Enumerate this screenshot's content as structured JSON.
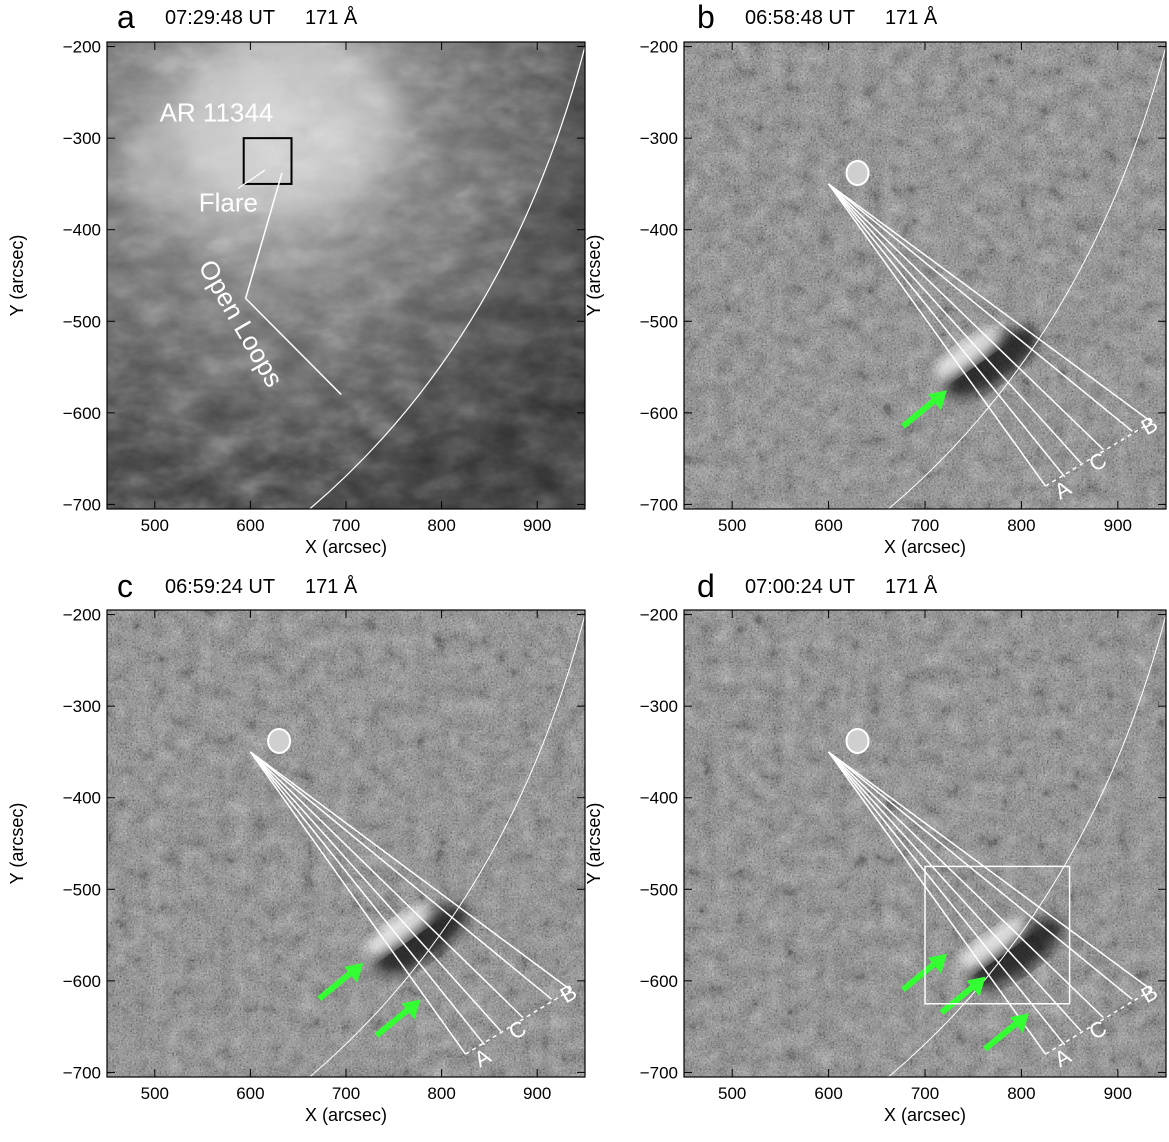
{
  "panels": [
    {
      "letter": "a",
      "time": "07:29:48 UT",
      "channel": "171 Å",
      "kind": "intensity",
      "annotations": {
        "region": "AR 11344",
        "flare": "Flare",
        "loops": "Open Loops"
      }
    },
    {
      "letter": "b",
      "time": "06:58:48 UT",
      "channel": "171 Å",
      "kind": "difference"
    },
    {
      "letter": "c",
      "time": "06:59:24 UT",
      "channel": "171 Å",
      "kind": "difference"
    },
    {
      "letter": "d",
      "time": "07:00:24 UT",
      "channel": "171 Å",
      "kind": "difference"
    }
  ],
  "axes": {
    "xlabel": "X (arcsec)",
    "ylabel": "Y (arcsec)",
    "xticks": [
      "500",
      "600",
      "700",
      "800",
      "900"
    ],
    "yticks": [
      "−200",
      "−300",
      "−400",
      "−500",
      "−600",
      "−700"
    ],
    "xlim": [
      450,
      950
    ],
    "ylim": [
      -705,
      -195
    ]
  },
  "slit_labels": [
    "A",
    "C",
    "B"
  ],
  "colors": {
    "arrow": "#33ff33",
    "annotation": "#ffffff",
    "frame": "#000000"
  }
}
